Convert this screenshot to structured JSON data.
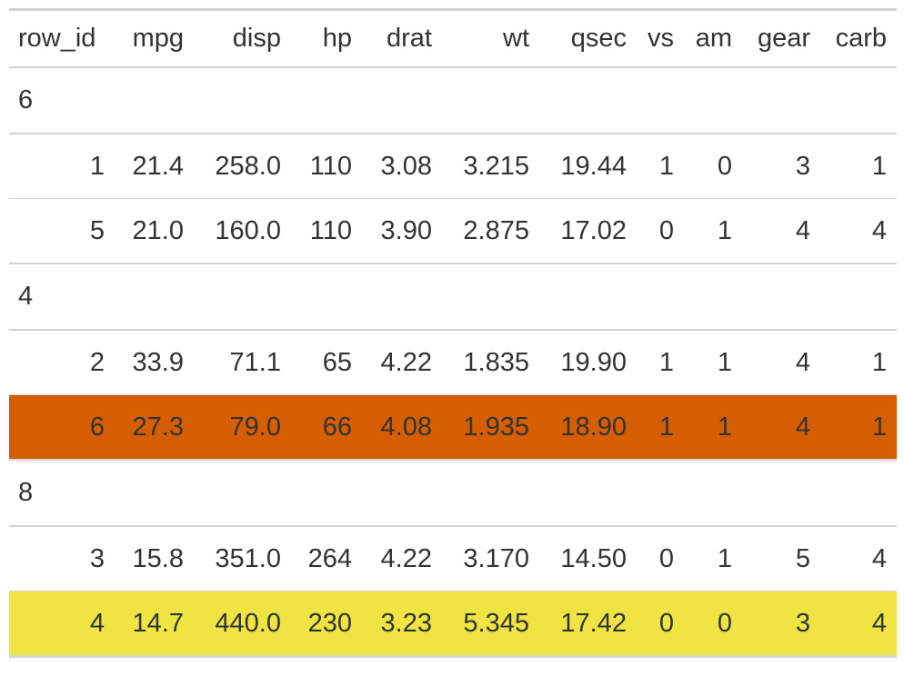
{
  "columns": [
    "row_id",
    "mpg",
    "disp",
    "hp",
    "drat",
    "wt",
    "qsec",
    "vs",
    "am",
    "gear",
    "carb"
  ],
  "highlight_colors": {
    "orange": "#D55E00",
    "yellow": "#F0E442"
  },
  "groups": [
    {
      "label": "6",
      "rows": [
        {
          "cells": [
            "1",
            "21.4",
            "258.0",
            "110",
            "3.08",
            "3.215",
            "19.44",
            "1",
            "0",
            "3",
            "1"
          ],
          "highlight": null
        },
        {
          "cells": [
            "5",
            "21.0",
            "160.0",
            "110",
            "3.90",
            "2.875",
            "17.02",
            "0",
            "1",
            "4",
            "4"
          ],
          "highlight": null
        }
      ]
    },
    {
      "label": "4",
      "rows": [
        {
          "cells": [
            "2",
            "33.9",
            "71.1",
            "65",
            "4.22",
            "1.835",
            "19.90",
            "1",
            "1",
            "4",
            "1"
          ],
          "highlight": null
        },
        {
          "cells": [
            "6",
            "27.3",
            "79.0",
            "66",
            "4.08",
            "1.935",
            "18.90",
            "1",
            "1",
            "4",
            "1"
          ],
          "highlight": "#D55E00"
        }
      ]
    },
    {
      "label": "8",
      "rows": [
        {
          "cells": [
            "3",
            "15.8",
            "351.0",
            "264",
            "4.22",
            "3.170",
            "14.50",
            "0",
            "1",
            "5",
            "4"
          ],
          "highlight": null
        },
        {
          "cells": [
            "4",
            "14.7",
            "440.0",
            "230",
            "3.23",
            "5.345",
            "17.42",
            "0",
            "0",
            "3",
            "4"
          ],
          "highlight": "#F0E442"
        }
      ]
    }
  ]
}
